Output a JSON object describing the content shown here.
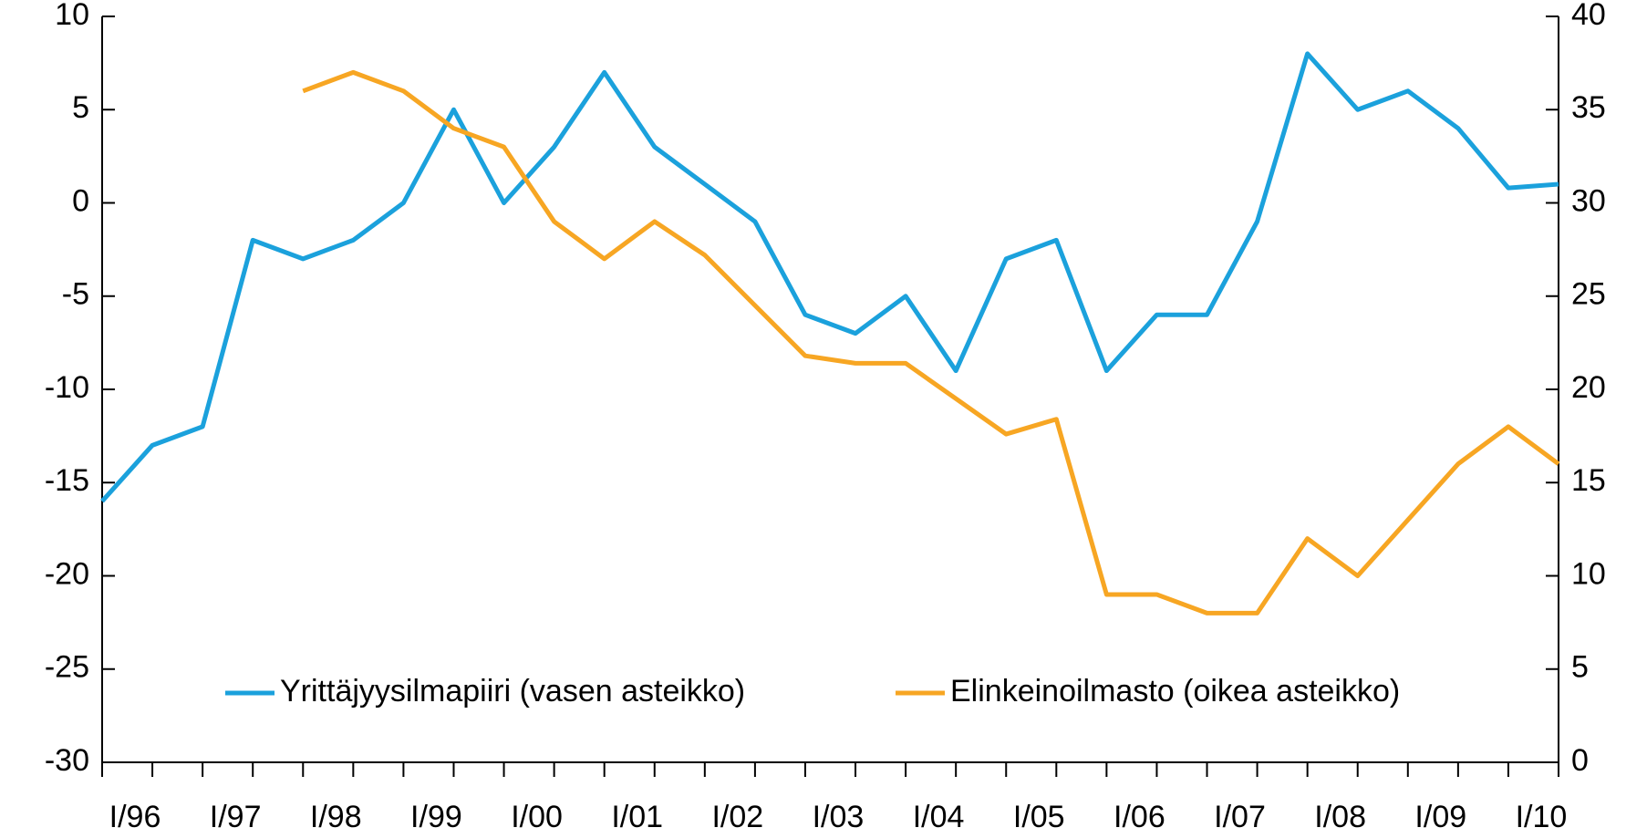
{
  "chart_data": {
    "type": "line",
    "categories": [
      "I/96",
      null,
      "I/97",
      null,
      "I/98",
      null,
      "I/99",
      null,
      "I/00",
      null,
      "I/01",
      null,
      "I/02",
      null,
      "I/03",
      null,
      "I/04",
      null,
      "I/05",
      null,
      "I/06",
      null,
      "I/07",
      null,
      "I/08",
      null,
      "I/09",
      null,
      "I/10",
      null
    ],
    "series": [
      {
        "name": "Yrittäjyysilmapiiri (vasen asteikko)",
        "color": "#1ba1dc",
        "values": [
          -16,
          -13,
          -12,
          -2,
          -3,
          -2,
          0,
          5,
          0,
          3,
          7,
          3,
          1,
          -1,
          -6,
          -7,
          -5,
          -9,
          -3,
          -2,
          -9,
          -6,
          -6,
          -1,
          8,
          5,
          6,
          4,
          0.8,
          1
        ]
      },
      {
        "name": "Elinkeinoilmasto (oikea asteikko)",
        "color": "#f7a623",
        "axis": "y2",
        "values": [
          null,
          null,
          null,
          null,
          36,
          37,
          36,
          34,
          33,
          29,
          27,
          29,
          27.2,
          24.5,
          21.8,
          21.4,
          21.4,
          19.5,
          17.6,
          18.4,
          9,
          9,
          8,
          8,
          12,
          10,
          13,
          16,
          18,
          16
        ]
      }
    ],
    "ylim": [
      -30,
      10
    ],
    "yticks": [
      -30,
      -25,
      -20,
      -15,
      -10,
      -5,
      0,
      5,
      10
    ],
    "y2lim": [
      0,
      40
    ],
    "y2ticks": [
      0,
      5,
      10,
      15,
      20,
      25,
      30,
      35,
      40
    ],
    "legend": "bottom"
  }
}
